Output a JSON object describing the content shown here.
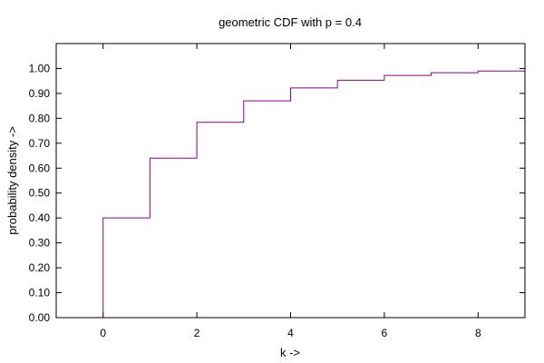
{
  "chart_data": {
    "type": "line",
    "style": "step",
    "title": "geometric CDF with p = 0.4",
    "xlabel": "k ->",
    "ylabel": "probability density ->",
    "xlim": [
      -1,
      9
    ],
    "ylim": [
      0,
      1.1
    ],
    "xticks": [
      0,
      2,
      4,
      6,
      8
    ],
    "yticks": [
      0.0,
      0.1,
      0.2,
      0.3,
      0.4,
      0.5,
      0.6,
      0.7,
      0.8,
      0.9,
      1.0
    ],
    "xtick_labels": [
      "0",
      "2",
      "4",
      "6",
      "8"
    ],
    "ytick_labels": [
      "0.00",
      "0.10",
      "0.20",
      "0.30",
      "0.40",
      "0.50",
      "0.60",
      "0.70",
      "0.80",
      "0.90",
      "1.00"
    ],
    "grid": false,
    "legend": "none",
    "series_color": "#8b008b",
    "series": [
      {
        "x": [
          0,
          1,
          2,
          3,
          4,
          5,
          6,
          7,
          8
        ],
        "values": [
          0.4,
          0.64,
          0.784,
          0.87,
          0.922,
          0.953,
          0.972,
          0.983,
          0.99
        ]
      }
    ]
  }
}
